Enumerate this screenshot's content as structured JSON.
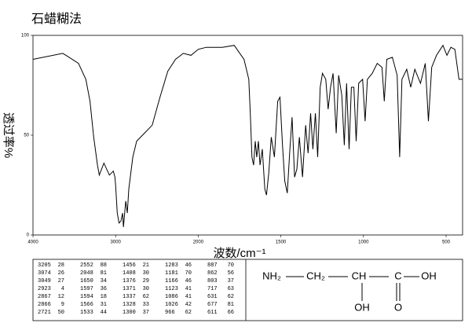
{
  "chart_data": {
    "type": "line",
    "title": "石蜡糊法",
    "x_label": "波数/cm⁻¹",
    "y_label": "透过率%",
    "xlim": [
      4000,
      400
    ],
    "xticks": [
      4000,
      3000,
      2000,
      1500,
      1000,
      500
    ],
    "ylim": [
      0,
      100
    ],
    "yticks": [
      0,
      50,
      100
    ],
    "color": "#000000",
    "x": [
      4000,
      3640,
      3600,
      3450,
      3360,
      3310,
      3265,
      3220,
      3198,
      3142,
      3075,
      3028,
      3009,
      3000,
      2980,
      2958,
      2935,
      2915,
      2905,
      2877,
      2858,
      2840,
      2792,
      2745,
      2651,
      2557,
      2463,
      2369,
      2275,
      2181,
      2087,
      2000,
      1951,
      1854,
      1782,
      1757,
      1723,
      1694,
      1684,
      1675,
      1665,
      1655,
      1646,
      1636,
      1626,
      1612,
      1597,
      1587,
      1573,
      1558,
      1539,
      1519,
      1505,
      1490,
      1476,
      1461,
      1447,
      1432,
      1417,
      1403,
      1388,
      1369,
      1350,
      1335,
      1320,
      1306,
      1291,
      1277,
      1262,
      1248,
      1228,
      1214,
      1199,
      1184,
      1165,
      1150,
      1131,
      1116,
      1102,
      1087,
      1073,
      1058,
      1044,
      1029,
      1005,
      990,
      976,
      947,
      917,
      888,
      874,
      859,
      825,
      796,
      781,
      767,
      738,
      714,
      689,
      655,
      626,
      607,
      587,
      558,
      519,
      495,
      471,
      447,
      422,
      400
    ],
    "values": [
      88,
      91,
      90,
      86,
      78,
      67,
      49,
      35,
      30,
      36,
      30,
      32,
      29,
      25,
      11,
      6,
      7,
      11,
      4,
      17,
      11,
      23,
      39,
      47,
      51,
      55,
      69,
      82,
      88,
      91,
      90,
      93,
      94,
      94,
      95,
      92,
      88,
      78,
      59,
      39,
      35,
      47,
      39,
      47,
      35,
      43,
      23,
      20,
      31,
      49,
      39,
      67,
      69,
      45,
      27,
      21,
      41,
      59,
      29,
      33,
      49,
      29,
      55,
      41,
      61,
      43,
      61,
      39,
      74,
      81,
      78,
      63,
      74,
      81,
      51,
      80,
      70,
      45,
      76,
      43,
      74,
      74,
      47,
      76,
      78,
      57,
      78,
      81,
      86,
      84,
      67,
      88,
      89,
      80,
      39,
      78,
      83,
      74,
      83,
      76,
      86,
      57,
      84,
      90,
      95,
      90,
      94,
      93,
      78,
      78
    ]
  },
  "peak_table": {
    "columns": [
      [
        [
          3205,
          28
        ],
        [
          3074,
          26
        ],
        [
          3049,
          27
        ],
        [
          2923,
          4
        ],
        [
          2867,
          12
        ],
        [
          2866,
          9
        ],
        [
          2721,
          50
        ]
      ],
      [
        [
          2552,
          88
        ],
        [
          2048,
          81
        ],
        [
          1650,
          34
        ],
        [
          1597,
          36
        ],
        [
          1594,
          18
        ],
        [
          1566,
          31
        ],
        [
          1533,
          44
        ]
      ],
      [
        [
          1456,
          21
        ],
        [
          1408,
          30
        ],
        [
          1376,
          29
        ],
        [
          1371,
          30
        ],
        [
          1337,
          62
        ],
        [
          1328,
          33
        ],
        [
          1300,
          37
        ]
      ],
      [
        [
          1283,
          46
        ],
        [
          1181,
          70
        ],
        [
          1166,
          46
        ],
        [
          1123,
          41
        ],
        [
          1086,
          41
        ],
        [
          1026,
          42
        ],
        [
          966,
          62
        ]
      ],
      [
        [
          887,
          70
        ],
        [
          862,
          56
        ],
        [
          803,
          37
        ],
        [
          717,
          63
        ],
        [
          631,
          62
        ],
        [
          677,
          81
        ],
        [
          611,
          66
        ]
      ]
    ]
  },
  "structure": {
    "labels": [
      "NH₂",
      "CH₂",
      "CH",
      "C",
      "OH",
      "OH",
      "O"
    ]
  }
}
